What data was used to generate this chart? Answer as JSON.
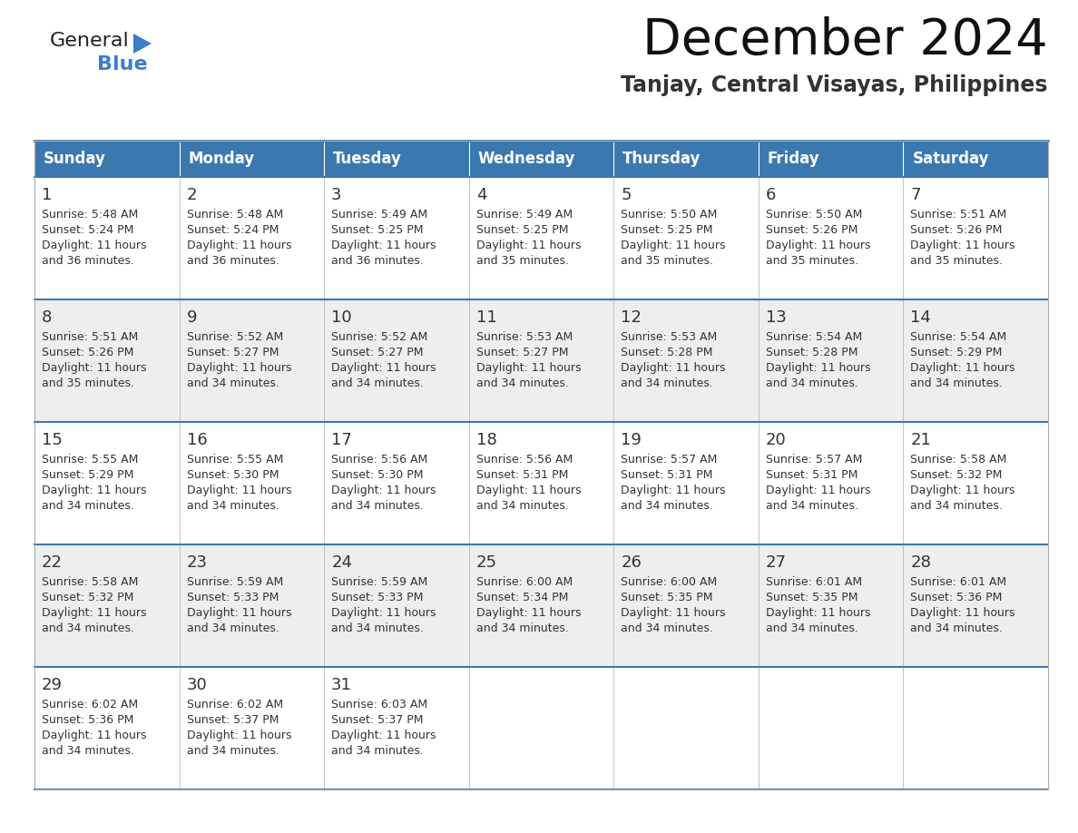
{
  "title": "December 2024",
  "subtitle": "Tanjay, Central Visayas, Philippines",
  "header_color": "#3B78B0",
  "header_text_color": "#FFFFFF",
  "day_names": [
    "Sunday",
    "Monday",
    "Tuesday",
    "Wednesday",
    "Thursday",
    "Friday",
    "Saturday"
  ],
  "background_color": "#FFFFFF",
  "cell_bg_even": "#EEEEEE",
  "cell_bg_odd": "#FFFFFF",
  "cell_text_color": "#333333",
  "border_color": "#AAAAAA",
  "row_separator_color": "#3B78B0",
  "days": [
    {
      "day": 1,
      "col": 0,
      "row": 0,
      "sunrise": "5:48 AM",
      "sunset": "5:24 PM",
      "daylight_suffix": "36 minutes."
    },
    {
      "day": 2,
      "col": 1,
      "row": 0,
      "sunrise": "5:48 AM",
      "sunset": "5:24 PM",
      "daylight_suffix": "36 minutes."
    },
    {
      "day": 3,
      "col": 2,
      "row": 0,
      "sunrise": "5:49 AM",
      "sunset": "5:25 PM",
      "daylight_suffix": "36 minutes."
    },
    {
      "day": 4,
      "col": 3,
      "row": 0,
      "sunrise": "5:49 AM",
      "sunset": "5:25 PM",
      "daylight_suffix": "35 minutes."
    },
    {
      "day": 5,
      "col": 4,
      "row": 0,
      "sunrise": "5:50 AM",
      "sunset": "5:25 PM",
      "daylight_suffix": "35 minutes."
    },
    {
      "day": 6,
      "col": 5,
      "row": 0,
      "sunrise": "5:50 AM",
      "sunset": "5:26 PM",
      "daylight_suffix": "35 minutes."
    },
    {
      "day": 7,
      "col": 6,
      "row": 0,
      "sunrise": "5:51 AM",
      "sunset": "5:26 PM",
      "daylight_suffix": "35 minutes."
    },
    {
      "day": 8,
      "col": 0,
      "row": 1,
      "sunrise": "5:51 AM",
      "sunset": "5:26 PM",
      "daylight_suffix": "35 minutes."
    },
    {
      "day": 9,
      "col": 1,
      "row": 1,
      "sunrise": "5:52 AM",
      "sunset": "5:27 PM",
      "daylight_suffix": "34 minutes."
    },
    {
      "day": 10,
      "col": 2,
      "row": 1,
      "sunrise": "5:52 AM",
      "sunset": "5:27 PM",
      "daylight_suffix": "34 minutes."
    },
    {
      "day": 11,
      "col": 3,
      "row": 1,
      "sunrise": "5:53 AM",
      "sunset": "5:27 PM",
      "daylight_suffix": "34 minutes."
    },
    {
      "day": 12,
      "col": 4,
      "row": 1,
      "sunrise": "5:53 AM",
      "sunset": "5:28 PM",
      "daylight_suffix": "34 minutes."
    },
    {
      "day": 13,
      "col": 5,
      "row": 1,
      "sunrise": "5:54 AM",
      "sunset": "5:28 PM",
      "daylight_suffix": "34 minutes."
    },
    {
      "day": 14,
      "col": 6,
      "row": 1,
      "sunrise": "5:54 AM",
      "sunset": "5:29 PM",
      "daylight_suffix": "34 minutes."
    },
    {
      "day": 15,
      "col": 0,
      "row": 2,
      "sunrise": "5:55 AM",
      "sunset": "5:29 PM",
      "daylight_suffix": "34 minutes."
    },
    {
      "day": 16,
      "col": 1,
      "row": 2,
      "sunrise": "5:55 AM",
      "sunset": "5:30 PM",
      "daylight_suffix": "34 minutes."
    },
    {
      "day": 17,
      "col": 2,
      "row": 2,
      "sunrise": "5:56 AM",
      "sunset": "5:30 PM",
      "daylight_suffix": "34 minutes."
    },
    {
      "day": 18,
      "col": 3,
      "row": 2,
      "sunrise": "5:56 AM",
      "sunset": "5:31 PM",
      "daylight_suffix": "34 minutes."
    },
    {
      "day": 19,
      "col": 4,
      "row": 2,
      "sunrise": "5:57 AM",
      "sunset": "5:31 PM",
      "daylight_suffix": "34 minutes."
    },
    {
      "day": 20,
      "col": 5,
      "row": 2,
      "sunrise": "5:57 AM",
      "sunset": "5:31 PM",
      "daylight_suffix": "34 minutes."
    },
    {
      "day": 21,
      "col": 6,
      "row": 2,
      "sunrise": "5:58 AM",
      "sunset": "5:32 PM",
      "daylight_suffix": "34 minutes."
    },
    {
      "day": 22,
      "col": 0,
      "row": 3,
      "sunrise": "5:58 AM",
      "sunset": "5:32 PM",
      "daylight_suffix": "34 minutes."
    },
    {
      "day": 23,
      "col": 1,
      "row": 3,
      "sunrise": "5:59 AM",
      "sunset": "5:33 PM",
      "daylight_suffix": "34 minutes."
    },
    {
      "day": 24,
      "col": 2,
      "row": 3,
      "sunrise": "5:59 AM",
      "sunset": "5:33 PM",
      "daylight_suffix": "34 minutes."
    },
    {
      "day": 25,
      "col": 3,
      "row": 3,
      "sunrise": "6:00 AM",
      "sunset": "5:34 PM",
      "daylight_suffix": "34 minutes."
    },
    {
      "day": 26,
      "col": 4,
      "row": 3,
      "sunrise": "6:00 AM",
      "sunset": "5:35 PM",
      "daylight_suffix": "34 minutes."
    },
    {
      "day": 27,
      "col": 5,
      "row": 3,
      "sunrise": "6:01 AM",
      "sunset": "5:35 PM",
      "daylight_suffix": "34 minutes."
    },
    {
      "day": 28,
      "col": 6,
      "row": 3,
      "sunrise": "6:01 AM",
      "sunset": "5:36 PM",
      "daylight_suffix": "34 minutes."
    },
    {
      "day": 29,
      "col": 0,
      "row": 4,
      "sunrise": "6:02 AM",
      "sunset": "5:36 PM",
      "daylight_suffix": "34 minutes."
    },
    {
      "day": 30,
      "col": 1,
      "row": 4,
      "sunrise": "6:02 AM",
      "sunset": "5:37 PM",
      "daylight_suffix": "34 minutes."
    },
    {
      "day": 31,
      "col": 2,
      "row": 4,
      "sunrise": "6:03 AM",
      "sunset": "5:37 PM",
      "daylight_suffix": "34 minutes."
    }
  ],
  "num_rows": 5,
  "logo_triangle_color": "#3A7DC9",
  "logo_text_color": "#222222",
  "logo_blue_color": "#3A7DC9",
  "title_fontsize": 40,
  "subtitle_fontsize": 17,
  "header_fontsize": 12,
  "day_num_fontsize": 13,
  "cell_fontsize": 9
}
